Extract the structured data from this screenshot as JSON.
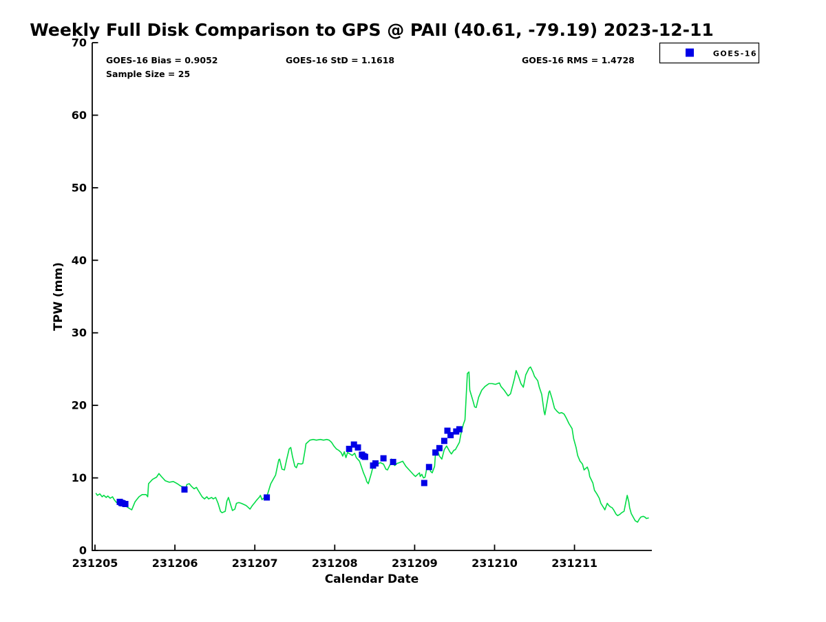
{
  "chart_data": {
    "type": "line+scatter",
    "title": "Weekly Full Disk Comparison to GPS @ PAII (40.61, -79.19) 2023-12-11",
    "stats": {
      "bias": "GOES-16 Bias = 0.9052",
      "std": "GOES-16 StD = 1.1618",
      "rms": "GOES-16 RMS = 1.4728",
      "sample_size": "Sample Size = 25"
    },
    "xlabel": "Calendar Date",
    "ylabel": "TPW (mm)",
    "x_base_date": "231205",
    "x_tick_labels": [
      "231205",
      "231206",
      "231207",
      "231208",
      "231209",
      "231210",
      "231211"
    ],
    "x_tick_day_offsets": [
      0,
      1,
      2,
      3,
      4,
      5,
      6
    ],
    "xlim_day_offsets": [
      0,
      7
    ],
    "y_tick_labels": [
      "0",
      "10",
      "20",
      "30",
      "40",
      "50",
      "60",
      "70"
    ],
    "y_tick_values": [
      0,
      10,
      20,
      30,
      40,
      50,
      60,
      70
    ],
    "ylim": [
      0,
      70
    ],
    "grid": false,
    "legend": {
      "label": "GOES-16",
      "position": "top-right-outside"
    },
    "colors": {
      "gps_line": "#00dc45",
      "goes16_marker": "#0000e6",
      "axis": "#000000",
      "text": "#000000",
      "legend_border": "#000000",
      "background": "#ffffff"
    },
    "series": [
      {
        "name": "GPS",
        "type": "line",
        "color_key": "gps_line",
        "points": [
          [
            0.01,
            7.9
          ],
          [
            0.03,
            7.6
          ],
          [
            0.06,
            7.8
          ],
          [
            0.09,
            7.4
          ],
          [
            0.11,
            7.6
          ],
          [
            0.14,
            7.3
          ],
          [
            0.16,
            7.5
          ],
          [
            0.19,
            7.2
          ],
          [
            0.22,
            7.4
          ],
          [
            0.24,
            7.0
          ],
          [
            0.27,
            6.6
          ],
          [
            0.29,
            6.7
          ],
          [
            0.33,
            6.5
          ],
          [
            0.36,
            6.3
          ],
          [
            0.4,
            6.0
          ],
          [
            0.43,
            5.8
          ],
          [
            0.46,
            5.6
          ],
          [
            0.5,
            6.7
          ],
          [
            0.55,
            7.4
          ],
          [
            0.59,
            7.7
          ],
          [
            0.64,
            7.7
          ],
          [
            0.66,
            7.4
          ],
          [
            0.67,
            9.2
          ],
          [
            0.72,
            9.8
          ],
          [
            0.77,
            10.1
          ],
          [
            0.8,
            10.6
          ],
          [
            0.83,
            10.2
          ],
          [
            0.88,
            9.6
          ],
          [
            0.93,
            9.4
          ],
          [
            0.98,
            9.5
          ],
          [
            1.03,
            9.2
          ],
          [
            1.07,
            8.9
          ],
          [
            1.09,
            8.8
          ],
          [
            1.14,
            8.7
          ],
          [
            1.15,
            9.1
          ],
          [
            1.18,
            9.2
          ],
          [
            1.21,
            8.8
          ],
          [
            1.24,
            8.5
          ],
          [
            1.27,
            8.7
          ],
          [
            1.29,
            8.3
          ],
          [
            1.34,
            7.4
          ],
          [
            1.37,
            7.1
          ],
          [
            1.4,
            7.4
          ],
          [
            1.42,
            7.1
          ],
          [
            1.46,
            7.3
          ],
          [
            1.48,
            7.1
          ],
          [
            1.51,
            7.3
          ],
          [
            1.54,
            6.5
          ],
          [
            1.57,
            5.4
          ],
          [
            1.59,
            5.2
          ],
          [
            1.63,
            5.4
          ],
          [
            1.65,
            6.8
          ],
          [
            1.67,
            7.3
          ],
          [
            1.7,
            6.2
          ],
          [
            1.72,
            5.5
          ],
          [
            1.75,
            5.7
          ],
          [
            1.77,
            6.5
          ],
          [
            1.8,
            6.6
          ],
          [
            1.83,
            6.5
          ],
          [
            1.85,
            6.4
          ],
          [
            1.89,
            6.2
          ],
          [
            1.91,
            6.0
          ],
          [
            1.94,
            5.7
          ],
          [
            1.97,
            6.2
          ],
          [
            2.0,
            6.6
          ],
          [
            2.02,
            6.9
          ],
          [
            2.06,
            7.4
          ],
          [
            2.07,
            7.6
          ],
          [
            2.09,
            7.0
          ],
          [
            2.11,
            7.2
          ],
          [
            2.15,
            7.4
          ],
          [
            2.18,
            8.5
          ],
          [
            2.2,
            9.2
          ],
          [
            2.23,
            9.8
          ],
          [
            2.26,
            10.4
          ],
          [
            2.3,
            12.5
          ],
          [
            2.31,
            12.6
          ],
          [
            2.34,
            11.2
          ],
          [
            2.37,
            11.1
          ],
          [
            2.4,
            12.6
          ],
          [
            2.43,
            14.0
          ],
          [
            2.45,
            14.2
          ],
          [
            2.47,
            13.0
          ],
          [
            2.5,
            11.6
          ],
          [
            2.52,
            11.4
          ],
          [
            2.54,
            12.0
          ],
          [
            2.58,
            11.9
          ],
          [
            2.6,
            12.0
          ],
          [
            2.63,
            13.9
          ],
          [
            2.64,
            14.7
          ],
          [
            2.66,
            14.9
          ],
          [
            2.69,
            15.2
          ],
          [
            2.73,
            15.3
          ],
          [
            2.77,
            15.2
          ],
          [
            2.82,
            15.3
          ],
          [
            2.86,
            15.2
          ],
          [
            2.9,
            15.3
          ],
          [
            2.93,
            15.2
          ],
          [
            2.96,
            14.9
          ],
          [
            2.99,
            14.4
          ],
          [
            3.02,
            14.0
          ],
          [
            3.05,
            13.8
          ],
          [
            3.08,
            13.5
          ],
          [
            3.1,
            13.0
          ],
          [
            3.12,
            13.6
          ],
          [
            3.14,
            12.8
          ],
          [
            3.16,
            13.5
          ],
          [
            3.19,
            13.3
          ],
          [
            3.22,
            13.1
          ],
          [
            3.25,
            13.4
          ],
          [
            3.27,
            12.8
          ],
          [
            3.31,
            12.3
          ],
          [
            3.36,
            10.7
          ],
          [
            3.39,
            9.9
          ],
          [
            3.4,
            9.5
          ],
          [
            3.42,
            9.2
          ],
          [
            3.45,
            10.3
          ],
          [
            3.46,
            10.7
          ],
          [
            3.49,
            12.1
          ],
          [
            3.52,
            11.7
          ],
          [
            3.55,
            12.0
          ],
          [
            3.57,
            12.1
          ],
          [
            3.61,
            11.9
          ],
          [
            3.64,
            11.2
          ],
          [
            3.66,
            11.1
          ],
          [
            3.7,
            12.0
          ],
          [
            3.71,
            12.6
          ],
          [
            3.72,
            12.1
          ],
          [
            3.75,
            11.7
          ],
          [
            3.78,
            12.0
          ],
          [
            3.81,
            12.1
          ],
          [
            3.85,
            12.3
          ],
          [
            3.89,
            11.6
          ],
          [
            3.94,
            11.0
          ],
          [
            3.99,
            10.4
          ],
          [
            4.01,
            10.2
          ],
          [
            4.04,
            10.5
          ],
          [
            4.06,
            10.7
          ],
          [
            4.07,
            10.2
          ],
          [
            4.09,
            10.5
          ],
          [
            4.11,
            10.0
          ],
          [
            4.13,
            10.1
          ],
          [
            4.15,
            11.2
          ],
          [
            4.18,
            11.6
          ],
          [
            4.2,
            10.9
          ],
          [
            4.22,
            10.7
          ],
          [
            4.25,
            11.6
          ],
          [
            4.26,
            13.3
          ],
          [
            4.29,
            13.7
          ],
          [
            4.31,
            13.0
          ],
          [
            4.34,
            12.6
          ],
          [
            4.37,
            13.9
          ],
          [
            4.4,
            14.4
          ],
          [
            4.44,
            13.6
          ],
          [
            4.46,
            13.3
          ],
          [
            4.49,
            13.8
          ],
          [
            4.51,
            13.9
          ],
          [
            4.56,
            14.9
          ],
          [
            4.58,
            16.1
          ],
          [
            4.61,
            17.4
          ],
          [
            4.63,
            18.0
          ],
          [
            4.66,
            24.4
          ],
          [
            4.68,
            24.6
          ],
          [
            4.69,
            22.1
          ],
          [
            4.73,
            20.6
          ],
          [
            4.75,
            19.8
          ],
          [
            4.77,
            19.7
          ],
          [
            4.8,
            21.1
          ],
          [
            4.84,
            22.1
          ],
          [
            4.88,
            22.6
          ],
          [
            4.93,
            23.0
          ],
          [
            4.97,
            23.0
          ],
          [
            5.01,
            22.9
          ],
          [
            5.06,
            23.1
          ],
          [
            5.08,
            22.6
          ],
          [
            5.12,
            22.1
          ],
          [
            5.17,
            21.3
          ],
          [
            5.2,
            21.6
          ],
          [
            5.25,
            23.7
          ],
          [
            5.27,
            24.8
          ],
          [
            5.3,
            24.0
          ],
          [
            5.33,
            23.0
          ],
          [
            5.36,
            22.5
          ],
          [
            5.39,
            24.2
          ],
          [
            5.43,
            25.1
          ],
          [
            5.45,
            25.3
          ],
          [
            5.48,
            24.6
          ],
          [
            5.5,
            24.0
          ],
          [
            5.54,
            23.4
          ],
          [
            5.56,
            22.5
          ],
          [
            5.59,
            21.5
          ],
          [
            5.62,
            19.1
          ],
          [
            5.63,
            18.7
          ],
          [
            5.68,
            21.8
          ],
          [
            5.69,
            22.0
          ],
          [
            5.72,
            20.9
          ],
          [
            5.75,
            19.6
          ],
          [
            5.78,
            19.2
          ],
          [
            5.81,
            18.9
          ],
          [
            5.84,
            19.0
          ],
          [
            5.87,
            18.8
          ],
          [
            5.9,
            18.2
          ],
          [
            5.93,
            17.5
          ],
          [
            5.97,
            16.8
          ],
          [
            5.99,
            15.4
          ],
          [
            6.02,
            14.2
          ],
          [
            6.04,
            13.1
          ],
          [
            6.07,
            12.3
          ],
          [
            6.1,
            11.9
          ],
          [
            6.12,
            11.1
          ],
          [
            6.16,
            11.5
          ],
          [
            6.18,
            10.9
          ],
          [
            6.19,
            10.2
          ],
          [
            6.23,
            9.3
          ],
          [
            6.25,
            8.3
          ],
          [
            6.28,
            7.8
          ],
          [
            6.31,
            7.2
          ],
          [
            6.33,
            6.5
          ],
          [
            6.37,
            5.8
          ],
          [
            6.38,
            5.6
          ],
          [
            6.41,
            6.5
          ],
          [
            6.43,
            6.2
          ],
          [
            6.45,
            6.0
          ],
          [
            6.47,
            5.9
          ],
          [
            6.49,
            5.6
          ],
          [
            6.52,
            5.0
          ],
          [
            6.54,
            4.8
          ],
          [
            6.57,
            5.0
          ],
          [
            6.59,
            5.2
          ],
          [
            6.62,
            5.4
          ],
          [
            6.66,
            7.6
          ],
          [
            6.68,
            6.7
          ],
          [
            6.69,
            5.9
          ],
          [
            6.71,
            5.1
          ],
          [
            6.74,
            4.5
          ],
          [
            6.76,
            4.1
          ],
          [
            6.79,
            3.9
          ],
          [
            6.81,
            4.3
          ],
          [
            6.83,
            4.6
          ],
          [
            6.86,
            4.7
          ],
          [
            6.88,
            4.6
          ],
          [
            6.9,
            4.4
          ],
          [
            6.93,
            4.5
          ]
        ]
      },
      {
        "name": "GOES-16",
        "type": "scatter",
        "marker": "square",
        "color_key": "goes16_marker",
        "points": [
          [
            0.31,
            6.7
          ],
          [
            0.33,
            6.55
          ],
          [
            0.345,
            6.5
          ],
          [
            0.38,
            6.4
          ],
          [
            1.12,
            8.4
          ],
          [
            2.15,
            7.3
          ],
          [
            3.18,
            14.0
          ],
          [
            3.24,
            14.6
          ],
          [
            3.29,
            14.2
          ],
          [
            3.34,
            13.2
          ],
          [
            3.36,
            13.0
          ],
          [
            3.38,
            12.9
          ],
          [
            3.48,
            11.7
          ],
          [
            3.51,
            12.0
          ],
          [
            3.61,
            12.7
          ],
          [
            3.73,
            12.2
          ],
          [
            4.12,
            9.3
          ],
          [
            4.18,
            11.5
          ],
          [
            4.26,
            13.5
          ],
          [
            4.31,
            14.1
          ],
          [
            4.37,
            15.1
          ],
          [
            4.41,
            16.5
          ],
          [
            4.45,
            15.9
          ],
          [
            4.52,
            16.4
          ],
          [
            4.56,
            16.7
          ]
        ]
      }
    ]
  }
}
